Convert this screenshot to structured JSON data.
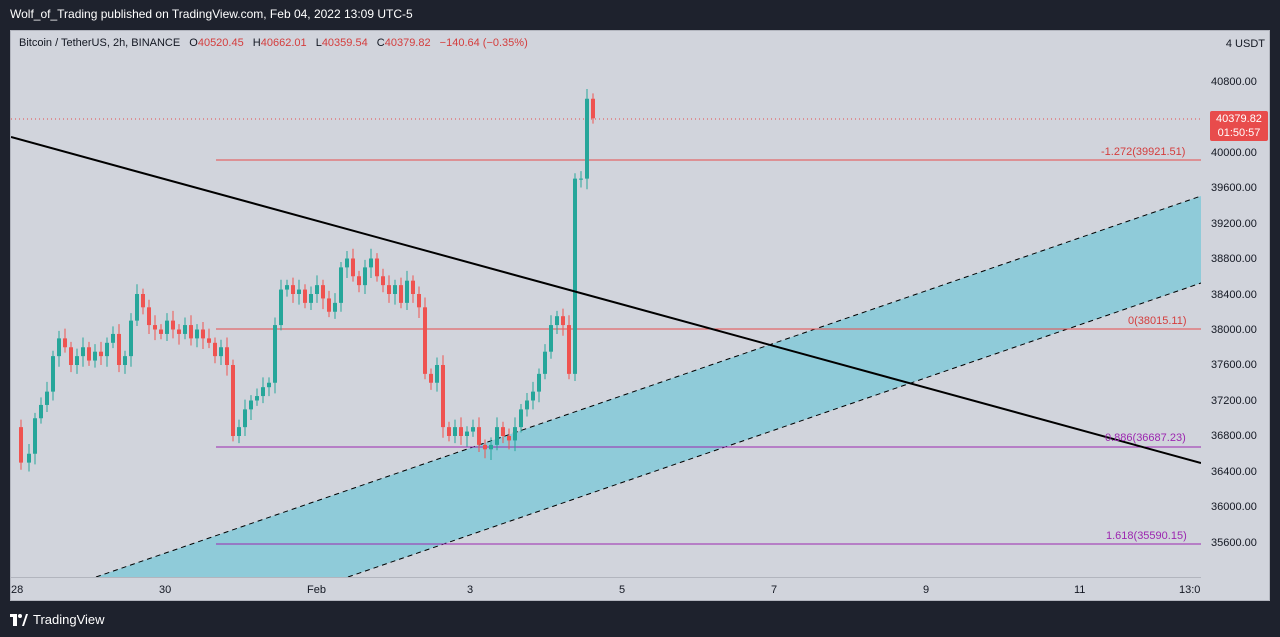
{
  "header": {
    "published": "Wolf_of_Trading published on TradingView.com, Feb 04, 2022 13:09 UTC-5"
  },
  "legend": {
    "symbol": "Bitcoin / TetherUS, 2h, BINANCE",
    "o_label": "O",
    "o_value": "40520.45",
    "h_label": "H",
    "h_value": "40662.01",
    "l_label": "L",
    "l_value": "40359.54",
    "c_label": "C",
    "c_value": "40379.82",
    "change": "−140.64 (−0.35%)"
  },
  "price_axis": {
    "currency": "USDT",
    "ticks": [
      "40800.00",
      "40000.00",
      "39600.00",
      "39200.00",
      "38800.00",
      "38400.00",
      "38000.00",
      "37600.00",
      "37200.00",
      "36800.00",
      "36400.00",
      "36000.00",
      "35600.00"
    ]
  },
  "last_price": {
    "price": "40379.82",
    "countdown": "01:50:57"
  },
  "fib_levels": [
    {
      "label": "-1.272(39921.51)",
      "price": 39921.51,
      "color": "#e84c4c"
    },
    {
      "label": "0(38015.11)",
      "price": 38015.11,
      "color": "#e84c4c"
    },
    {
      "label": "0.886(36687.23)",
      "price": 36687.23,
      "color": "#9c27b0"
    },
    {
      "label": "1.618(35590.15)",
      "price": 35590.15,
      "color": "#9c27b0"
    }
  ],
  "time_axis": {
    "labels": [
      "28",
      "30",
      "Feb",
      "3",
      "5",
      "7",
      "9",
      "11",
      "13:0"
    ]
  },
  "colors": {
    "up": "#26a69a",
    "down": "#ef5350",
    "trend": "#000000",
    "channel_fill": "#8fcbd9",
    "background": "#d1d4dc"
  },
  "footer": {
    "brand": "TradingView"
  }
}
